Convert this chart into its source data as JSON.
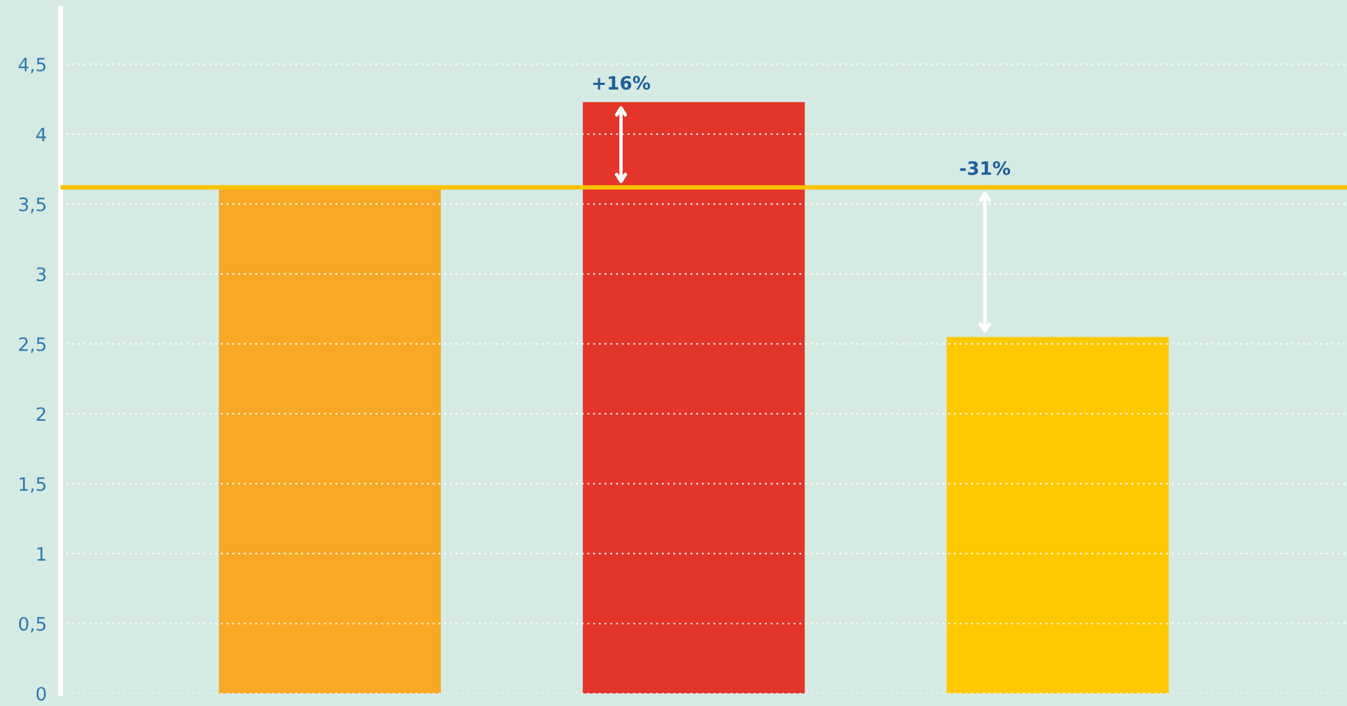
{
  "chart_data": {
    "type": "bar",
    "categories": [
      null,
      null,
      null
    ],
    "values": [
      3.62,
      4.23,
      2.55
    ],
    "colors": [
      "#f8a824",
      "#e3352a",
      "#fdc800"
    ],
    "ylim": [
      0,
      4.9
    ],
    "yticks": [
      0,
      {
        "value": 0.5,
        "label": "0,5"
      },
      1,
      {
        "value": 1.5,
        "label": "1,5"
      },
      2,
      {
        "value": 2.5,
        "label": "2,5"
      },
      3,
      {
        "value": 3.5,
        "label": "3,5"
      },
      4,
      {
        "value": 4.5,
        "label": "4,5"
      }
    ],
    "grid": "y",
    "tick_labels": "y",
    "ref_lines": [
      {
        "axis": "y",
        "value": 3.62,
        "color": "#f9c300"
      }
    ],
    "annotations": [
      {
        "text": "+16%",
        "y": 4.23
      },
      {
        "text": "-31%",
        "y": 3.62
      }
    ]
  }
}
